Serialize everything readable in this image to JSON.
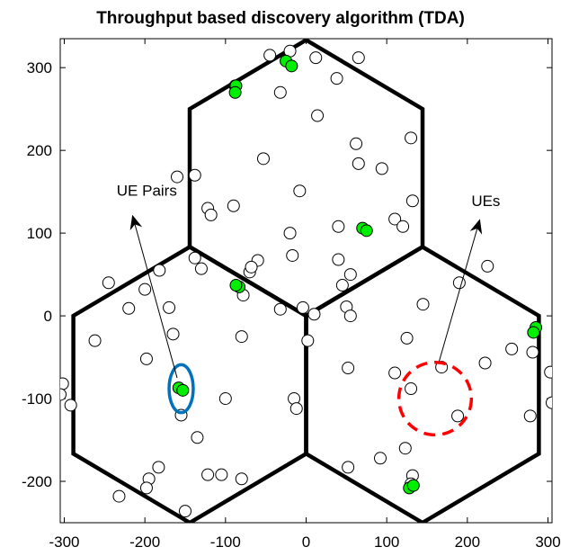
{
  "chart_data": {
    "type": "scatter",
    "title": "Throughput based discovery algorithm (TDA)",
    "xlabel": "",
    "ylabel": "",
    "xlim": [
      -305,
      305
    ],
    "ylim": [
      -250,
      335
    ],
    "xticks": [
      -300,
      -200,
      -100,
      0,
      100,
      200,
      300
    ],
    "yticks": [
      -200,
      -100,
      0,
      100,
      200,
      300
    ],
    "grid": false,
    "hexagons": [
      {
        "center": [
          0,
          166.7
        ],
        "radius": 166.7
      },
      {
        "center": [
          -144.3,
          -83.3
        ],
        "radius": 166.7
      },
      {
        "center": [
          144.3,
          -83.3
        ],
        "radius": 166.7
      }
    ],
    "series": [
      {
        "marker": "open-circle",
        "edge_color": "#000000",
        "face_color": "#ffffff",
        "points": [
          [
            -45,
            315
          ],
          [
            -20,
            320
          ],
          [
            12,
            312
          ],
          [
            65,
            312
          ],
          [
            38,
            287
          ],
          [
            -32,
            270
          ],
          [
            14,
            242
          ],
          [
            -88,
            278
          ],
          [
            -53,
            190
          ],
          [
            62,
            208
          ],
          [
            130,
            215
          ],
          [
            65,
            184
          ],
          [
            94,
            178
          ],
          [
            -160,
            168
          ],
          [
            -138,
            170
          ],
          [
            -8,
            151
          ],
          [
            -90,
            133
          ],
          [
            -122,
            130
          ],
          [
            -118,
            122
          ],
          [
            -20,
            100
          ],
          [
            40,
            108
          ],
          [
            132,
            139
          ],
          [
            110,
            117
          ],
          [
            120,
            108
          ],
          [
            -138,
            70
          ],
          [
            -130,
            57
          ],
          [
            -182,
            55
          ],
          [
            -60,
            67
          ],
          [
            -70,
            53
          ],
          [
            -68,
            59
          ],
          [
            -17,
            73
          ],
          [
            40,
            68
          ],
          [
            55,
            50
          ],
          [
            45,
            37
          ],
          [
            -78,
            25
          ],
          [
            -245,
            40
          ],
          [
            -200,
            32
          ],
          [
            -220,
            9
          ],
          [
            -170,
            10
          ],
          [
            -32,
            8
          ],
          [
            -4,
            10
          ],
          [
            2,
            -30
          ],
          [
            10,
            2
          ],
          [
            50,
            11
          ],
          [
            55,
            0
          ],
          [
            145,
            14
          ],
          [
            190,
            40
          ],
          [
            225,
            60
          ],
          [
            -262,
            -30
          ],
          [
            -80,
            -25
          ],
          [
            -165,
            -22
          ],
          [
            -198,
            -52
          ],
          [
            -155,
            -120
          ],
          [
            -15,
            -100
          ],
          [
            -12,
            -112
          ],
          [
            -100,
            -100
          ],
          [
            -135,
            -147
          ],
          [
            125,
            -27
          ],
          [
            110,
            -69
          ],
          [
            130,
            -88
          ],
          [
            168,
            -62
          ],
          [
            222,
            -57
          ],
          [
            255,
            -40
          ],
          [
            281,
            -44
          ],
          [
            303,
            -68
          ],
          [
            305,
            -105
          ],
          [
            278,
            -121
          ],
          [
            188,
            -121
          ],
          [
            52,
            -63
          ],
          [
            -302,
            -82
          ],
          [
            -305,
            -95
          ],
          [
            -292,
            -108
          ],
          [
            -183,
            -183
          ],
          [
            -195,
            -197
          ],
          [
            -198,
            -208
          ],
          [
            -232,
            -218
          ],
          [
            -150,
            -236
          ],
          [
            -122,
            -192
          ],
          [
            -105,
            -192
          ],
          [
            -80,
            -197
          ],
          [
            52,
            -183
          ],
          [
            92,
            -172
          ],
          [
            123,
            -160
          ],
          [
            132,
            -193
          ],
          [
            130,
            -203
          ]
        ]
      },
      {
        "marker": "filled-circle",
        "edge_color": "#000000",
        "face_color": "#00ee00",
        "points": [
          [
            -25,
            308
          ],
          [
            -18,
            302
          ],
          [
            -87,
            278
          ],
          [
            -88,
            270
          ],
          [
            70,
            106
          ],
          [
            75,
            103
          ],
          [
            -83,
            35
          ],
          [
            -87,
            37
          ],
          [
            -158,
            -87
          ],
          [
            -153,
            -90
          ],
          [
            285,
            -14
          ],
          [
            282,
            -20
          ],
          [
            128,
            -208
          ],
          [
            133,
            -205
          ]
        ]
      }
    ],
    "annotations": [
      {
        "text": "UE Pairs",
        "text_at": [
          -235,
          145
        ],
        "arrow_from": [
          -160,
          -75
        ],
        "arrow_to": [
          -215,
          120
        ]
      },
      {
        "text": "UEs",
        "text_at": [
          205,
          133
        ],
        "arrow_from": [
          165,
          -55
        ],
        "arrow_to": [
          215,
          115
        ]
      }
    ],
    "highlights": [
      {
        "shape": "ellipse",
        "center": [
          -155,
          -88
        ],
        "rx": 15,
        "ry": 29,
        "color": "#0072BD",
        "style": "solid"
      },
      {
        "shape": "circle",
        "center": [
          160,
          -100
        ],
        "r": 45,
        "color": "#FF0000",
        "style": "dashed"
      }
    ]
  }
}
